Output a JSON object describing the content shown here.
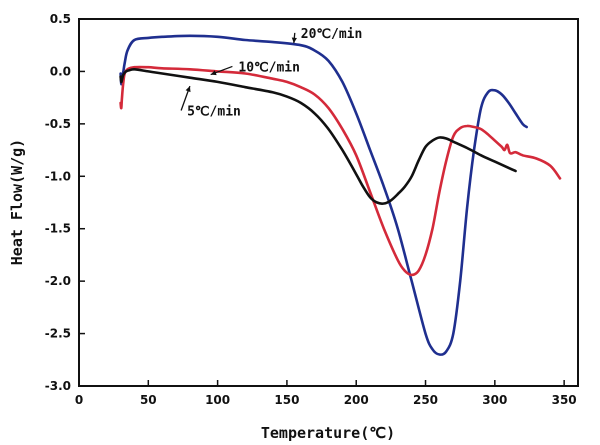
{
  "chart_data": {
    "type": "line",
    "title": "",
    "xlabel": "Temperature(℃)",
    "ylabel": "Heat Flow(W/g)",
    "xlim": [
      0,
      360
    ],
    "ylim": [
      -3.0,
      0.5
    ],
    "xticks": [
      0,
      50,
      100,
      150,
      200,
      250,
      300,
      350
    ],
    "yticks": [
      0.5,
      0.0,
      -0.5,
      -1.0,
      -1.5,
      -2.0,
      -2.5,
      -3.0
    ],
    "xtick_labels": [
      "0",
      "50",
      "100",
      "150",
      "200",
      "250",
      "300",
      "350"
    ],
    "ytick_labels": [
      "0.5",
      "0.0",
      "-0.5",
      "-1.0",
      "-1.5",
      "-2.0",
      "-2.5",
      "-3.0"
    ],
    "grid": false,
    "series": [
      {
        "name": "20℃/min",
        "color": "#1f2f8f",
        "x": [
          30,
          30.5,
          31,
          32,
          33,
          35,
          40,
          50,
          60,
          80,
          100,
          120,
          140,
          160,
          170,
          180,
          190,
          200,
          210,
          220,
          230,
          240,
          250,
          255,
          260,
          265,
          270,
          275,
          280,
          285,
          290,
          295,
          300,
          305,
          310,
          315,
          320,
          323
        ],
        "y": [
          -0.02,
          -0.12,
          -0.08,
          0.0,
          0.08,
          0.2,
          0.3,
          0.32,
          0.33,
          0.34,
          0.33,
          0.3,
          0.28,
          0.25,
          0.2,
          0.1,
          -0.1,
          -0.4,
          -0.75,
          -1.1,
          -1.5,
          -2.0,
          -2.5,
          -2.65,
          -2.7,
          -2.67,
          -2.5,
          -2.0,
          -1.3,
          -0.75,
          -0.35,
          -0.2,
          -0.18,
          -0.22,
          -0.3,
          -0.4,
          -0.5,
          -0.53
        ]
      },
      {
        "name": "10℃/min",
        "color": "#d42a3a",
        "x": [
          30,
          30.5,
          31,
          32,
          33,
          35,
          40,
          50,
          60,
          80,
          100,
          120,
          140,
          150,
          160,
          170,
          180,
          190,
          200,
          210,
          220,
          230,
          235,
          240,
          245,
          250,
          255,
          260,
          265,
          270,
          275,
          280,
          285,
          290,
          295,
          300,
          305,
          307,
          309,
          311,
          315,
          320,
          330,
          340,
          347
        ],
        "y": [
          -0.3,
          -0.35,
          -0.25,
          -0.1,
          -0.02,
          0.02,
          0.04,
          0.04,
          0.03,
          0.02,
          0.0,
          -0.02,
          -0.07,
          -0.1,
          -0.15,
          -0.22,
          -0.35,
          -0.55,
          -0.8,
          -1.15,
          -1.5,
          -1.8,
          -1.9,
          -1.94,
          -1.9,
          -1.75,
          -1.5,
          -1.15,
          -0.85,
          -0.62,
          -0.54,
          -0.52,
          -0.53,
          -0.55,
          -0.6,
          -0.66,
          -0.72,
          -0.75,
          -0.7,
          -0.78,
          -0.77,
          -0.8,
          -0.83,
          -0.9,
          -1.02
        ]
      },
      {
        "name": "5℃/min",
        "color": "#111111",
        "x": [
          30,
          30.5,
          31,
          32,
          34,
          36,
          40,
          50,
          60,
          80,
          100,
          120,
          140,
          150,
          160,
          170,
          180,
          190,
          200,
          205,
          210,
          215,
          220,
          225,
          230,
          235,
          240,
          245,
          250,
          255,
          260,
          265,
          270,
          280,
          290,
          300,
          310,
          315
        ],
        "y": [
          -0.05,
          -0.1,
          -0.08,
          -0.03,
          0.0,
          0.01,
          0.02,
          0.0,
          -0.02,
          -0.06,
          -0.1,
          -0.15,
          -0.2,
          -0.24,
          -0.3,
          -0.4,
          -0.55,
          -0.75,
          -0.98,
          -1.1,
          -1.2,
          -1.25,
          -1.26,
          -1.23,
          -1.17,
          -1.1,
          -1.0,
          -0.85,
          -0.72,
          -0.66,
          -0.63,
          -0.64,
          -0.67,
          -0.73,
          -0.8,
          -0.86,
          -0.92,
          -0.95
        ]
      }
    ],
    "annotations": [
      {
        "text": "20℃/min",
        "series": "20℃/min",
        "label_x": 160,
        "label_y": 0.32,
        "arrow_to_x": 155,
        "arrow_to_y": 0.27
      },
      {
        "text": "10℃/min",
        "series": "10℃/min",
        "label_x": 115,
        "label_y": 0.0,
        "arrow_to_x": 95,
        "arrow_to_y": -0.03
      },
      {
        "text": "5℃/min",
        "series": "5℃/min",
        "label_x": 78,
        "label_y": -0.42,
        "arrow_to_x": 80,
        "arrow_to_y": -0.14
      }
    ]
  }
}
